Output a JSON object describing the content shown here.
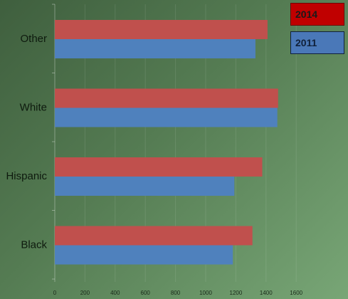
{
  "chart_data": {
    "type": "bar",
    "orientation": "horizontal",
    "title": "",
    "xlabel": "",
    "ylabel": "",
    "categories": [
      "Other",
      "White",
      "Hispanic",
      "Black"
    ],
    "series": [
      {
        "name": "2014",
        "color": "#c0504d",
        "values": [
          1410,
          1480,
          1375,
          1310
        ]
      },
      {
        "name": "2011",
        "color": "#4f81bd",
        "values": [
          1330,
          1475,
          1190,
          1180
        ]
      }
    ],
    "xlim": [
      0,
      1600
    ],
    "xticks": [
      "0",
      "200",
      "400",
      "600",
      "800",
      "1000",
      "1200",
      "1400",
      "1600"
    ],
    "grid": true,
    "legend_position": "top-right"
  },
  "legend": {
    "items": [
      {
        "label": "2014",
        "color": "#c00000"
      },
      {
        "label": "2011",
        "color": "#4a78b8"
      }
    ]
  }
}
